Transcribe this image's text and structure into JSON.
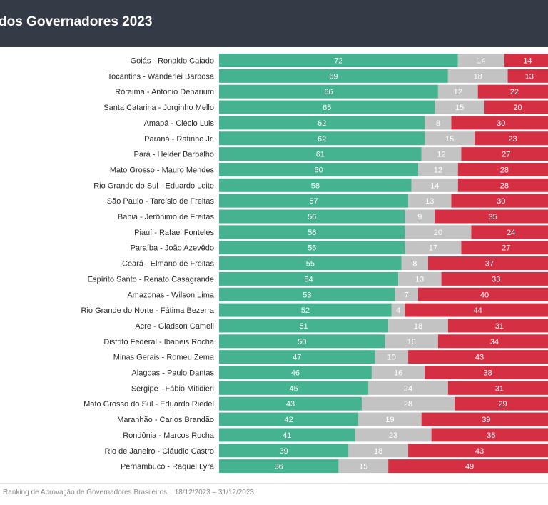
{
  "header": {
    "title": "dos Governadores 2023"
  },
  "colors": {
    "approve": "#45b38f",
    "neutral": "#c3c3c3",
    "disapprove": "#d52f44",
    "header_bg": "#343b47"
  },
  "footer": {
    "source": "Ranking de Aprovação de Governadores Brasileiros",
    "separator": "|",
    "period": "18/12/2023 – 31/12/2023"
  },
  "chart_data": {
    "type": "bar",
    "orientation": "horizontal-stacked-100",
    "categories": [
      "Goiás - Ronaldo Caiado",
      "Tocantins - Wanderlei Barbosa",
      "Roraima - Antonio Denarium",
      "Santa Catarina - Jorginho Mello",
      "Amapá - Clécio Luis",
      "Paraná - Ratinho Jr.",
      "Pará - Helder Barbalho",
      "Mato Grosso - Mauro Mendes",
      "Rio Grande do Sul - Eduardo Leite",
      "São Paulo - Tarcísio de Freitas",
      "Bahia - Jerônimo de Freitas",
      "Piauí - Rafael Fonteles",
      "Paraíba - João Azevêdo",
      "Ceará - Elmano de Freitas",
      "Espírito Santo - Renato Casagrande",
      "Amazonas - Wilson Lima",
      "Rio Grande do Norte - Fátima Bezerra",
      "Acre - Gladson Cameli",
      "Distrito Federal - Ibaneis Rocha",
      "Minas Gerais - Romeu Zema",
      "Alagoas - Paulo Dantas",
      "Sergipe - Fábio Mitidieri",
      "Mato Grosso do Sul - Eduardo Riedel",
      "Maranhão - Carlos Brandão",
      "Rondônia - Marcos Rocha",
      "Rio de Janeiro - Cláudio Castro",
      "Pernambuco - Raquel Lyra"
    ],
    "series": [
      {
        "color": "#45b38f",
        "values": [
          72,
          69,
          66,
          65,
          62,
          62,
          61,
          60,
          58,
          57,
          56,
          56,
          56,
          55,
          54,
          53,
          52,
          51,
          50,
          47,
          46,
          45,
          43,
          42,
          41,
          39,
          36
        ]
      },
      {
        "color": "#c3c3c3",
        "values": [
          14,
          18,
          12,
          15,
          8,
          15,
          12,
          12,
          14,
          13,
          9,
          20,
          17,
          8,
          13,
          7,
          4,
          18,
          16,
          10,
          16,
          24,
          28,
          19,
          23,
          18,
          15
        ]
      },
      {
        "color": "#d52f44",
        "values": [
          14,
          13,
          22,
          20,
          30,
          23,
          27,
          28,
          28,
          30,
          35,
          24,
          27,
          37,
          33,
          40,
          44,
          31,
          34,
          43,
          38,
          31,
          29,
          39,
          36,
          43,
          49
        ]
      }
    ],
    "xlim": [
      0,
      100
    ],
    "legend": "none",
    "grid": false
  }
}
